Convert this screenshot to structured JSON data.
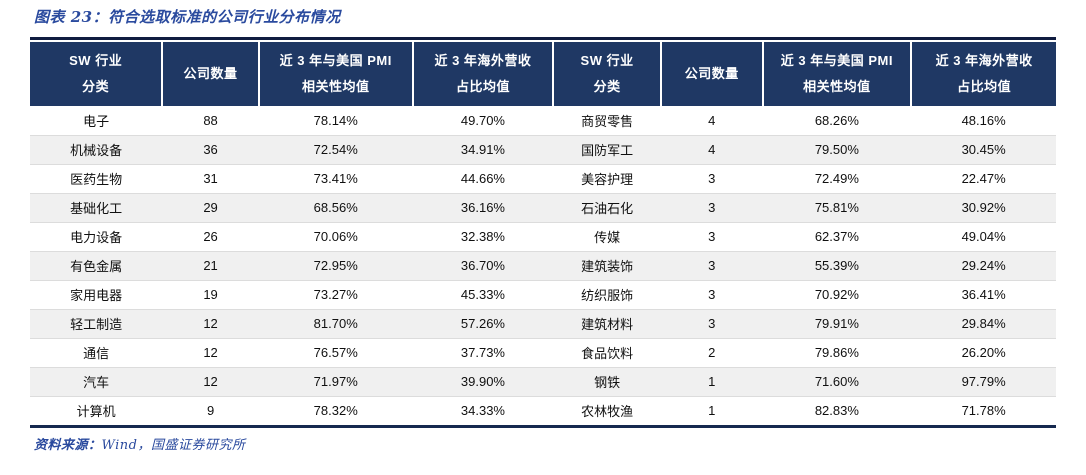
{
  "page": {
    "title": "图表 23：符合选取标准的公司行业分布情况",
    "source_label": "资料来源：",
    "source_text": "Wind，国盛证券研究所"
  },
  "table": {
    "header_columns": [
      [
        "SW 行业",
        "分类"
      ],
      [
        "公司数量"
      ],
      [
        "近 3 年与美国 PMI",
        "相关性均值"
      ],
      [
        "近 3 年海外营收",
        "占比均值"
      ],
      [
        "SW 行业",
        "分类"
      ],
      [
        "公司数量"
      ],
      [
        "近 3 年与美国 PMI",
        "相关性均值"
      ],
      [
        "近 3 年海外营收",
        "占比均值"
      ]
    ],
    "rows": [
      [
        "电子",
        "88",
        "78.14%",
        "49.70%",
        "商贸零售",
        "4",
        "68.26%",
        "48.16%"
      ],
      [
        "机械设备",
        "36",
        "72.54%",
        "34.91%",
        "国防军工",
        "4",
        "79.50%",
        "30.45%"
      ],
      [
        "医药生物",
        "31",
        "73.41%",
        "44.66%",
        "美容护理",
        "3",
        "72.49%",
        "22.47%"
      ],
      [
        "基础化工",
        "29",
        "68.56%",
        "36.16%",
        "石油石化",
        "3",
        "75.81%",
        "30.92%"
      ],
      [
        "电力设备",
        "26",
        "70.06%",
        "32.38%",
        "传媒",
        "3",
        "62.37%",
        "49.04%"
      ],
      [
        "有色金属",
        "21",
        "72.95%",
        "36.70%",
        "建筑装饰",
        "3",
        "55.39%",
        "29.24%"
      ],
      [
        "家用电器",
        "19",
        "73.27%",
        "45.33%",
        "纺织服饰",
        "3",
        "70.92%",
        "36.41%"
      ],
      [
        "轻工制造",
        "12",
        "81.70%",
        "57.26%",
        "建筑材料",
        "3",
        "79.91%",
        "29.84%"
      ],
      [
        "通信",
        "12",
        "76.57%",
        "37.73%",
        "食品饮料",
        "2",
        "79.86%",
        "26.20%"
      ],
      [
        "汽车",
        "12",
        "71.97%",
        "39.90%",
        "钢铁",
        "1",
        "71.60%",
        "97.79%"
      ],
      [
        "计算机",
        "9",
        "78.32%",
        "34.33%",
        "农林牧渔",
        "1",
        "82.83%",
        "71.78%"
      ]
    ]
  },
  "colors": {
    "header_bg": "#1f3864",
    "accent_blue": "#2a4a9e",
    "stripe": "#f0f0f0",
    "top_border": "#101c40"
  }
}
